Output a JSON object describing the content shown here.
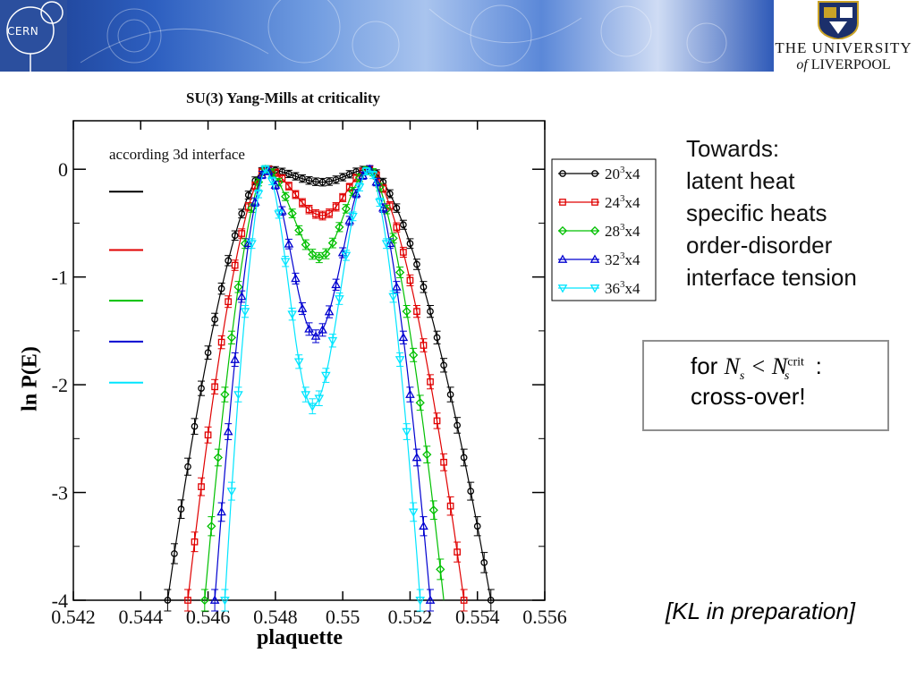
{
  "header": {
    "left_logo_text": "CERN",
    "right_logo_line1": "THE UNIVERSITY",
    "right_logo_line2_prefix": "of",
    "right_logo_line2_main": "LIVERPOOL",
    "colors": {
      "banner_dark": "#1a3a8a",
      "banner_light": "#a9c4ee"
    }
  },
  "chart_data": {
    "type": "scatter",
    "title": "SU(3) Yang-Mills at criticality",
    "xlabel": "plaquette",
    "ylabel": "ln P(E)",
    "xlim": [
      0.542,
      0.556
    ],
    "ylim": [
      -4,
      0.45
    ],
    "xticks": [
      "0.542",
      "0.544",
      "0.546",
      "0.548",
      "0.55",
      "0.552",
      "0.554",
      "0.556"
    ],
    "yticks": [
      "0",
      "-1",
      "-2",
      "-3",
      "-4"
    ],
    "annotation": "according 3d interface",
    "series": [
      {
        "name": "20",
        "label_sup": "3",
        "label_suffix": "x4",
        "color": "#000000",
        "marker": "circle",
        "minimum_plaquette": 0.5494,
        "minimum_value": -0.12,
        "left_edge_plaquette": 0.5448,
        "right_edge_plaquette": 0.5544
      },
      {
        "name": "24",
        "label_sup": "3",
        "label_suffix": "x4",
        "color": "#e00000",
        "marker": "square",
        "minimum_plaquette": 0.5494,
        "minimum_value": -0.43,
        "left_edge_plaquette": 0.5454,
        "right_edge_plaquette": 0.5536
      },
      {
        "name": "28",
        "label_sup": "3",
        "label_suffix": "x4",
        "color": "#00c000",
        "marker": "diamond",
        "minimum_plaquette": 0.5493,
        "minimum_value": -0.82,
        "left_edge_plaquette": 0.5459,
        "right_edge_plaquette": 0.553
      },
      {
        "name": "32",
        "label_sup": "3",
        "label_suffix": "x4",
        "color": "#0000d0",
        "marker": "triangle-up",
        "minimum_plaquette": 0.5492,
        "minimum_value": -1.55,
        "left_edge_plaquette": 0.5462,
        "right_edge_plaquette": 0.5526
      },
      {
        "name": "36",
        "label_sup": "3",
        "label_suffix": "x4",
        "color": "#00e5ff",
        "marker": "triangle-down",
        "minimum_plaquette": 0.5491,
        "minimum_value": -2.2,
        "left_edge_plaquette": 0.5465,
        "right_edge_plaquette": 0.5523
      }
    ]
  },
  "notes": {
    "towards_lines": [
      "Towards:",
      "latent heat",
      "specific heats",
      "order-disorder",
      "interface tension"
    ],
    "box_prefix": "for ",
    "box_math_lhs": "N",
    "box_math_lhs_sub": "s",
    "box_math_op": " < ",
    "box_math_rhs": "N",
    "box_math_rhs_sub": "s",
    "box_math_rhs_sup": "crit",
    "box_colon": ":",
    "box_line2": "cross-over!",
    "citation": "[KL in preparation]"
  }
}
